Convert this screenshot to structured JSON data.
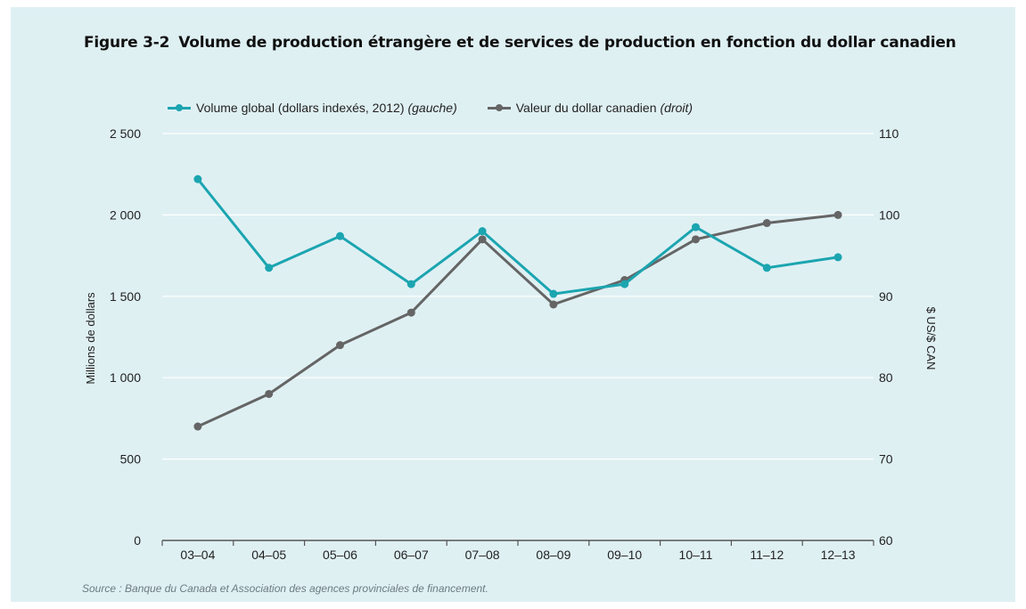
{
  "chart_data": {
    "type": "line",
    "title_number": "Figure 3-2",
    "title": "Volume de production étrangère et de services de production en fonction du dollar canadien",
    "categories": [
      "03–04",
      "04–05",
      "05–06",
      "06–07",
      "07–08",
      "08–09",
      "09–10",
      "10–11",
      "11–12",
      "12–13"
    ],
    "series": [
      {
        "name": "Volume global (dollars indexés, 2012)",
        "name_suffix": "(gauche)",
        "axis": "left",
        "color": "#1ba5b0",
        "values": [
          2220,
          1675,
          1870,
          1575,
          1900,
          1515,
          1575,
          1925,
          1675,
          1740
        ]
      },
      {
        "name": "Valeur du dollar canadien",
        "name_suffix": "(droit)",
        "axis": "right",
        "color": "#656565",
        "values": [
          74,
          78,
          84,
          88,
          97,
          89,
          92,
          97,
          99,
          100
        ]
      }
    ],
    "y_left": {
      "label": "Millions de dollars",
      "ylim": [
        0,
        2500
      ],
      "ticks": [
        0,
        500,
        1000,
        1500,
        2000,
        2500
      ],
      "tick_labels": [
        "0",
        "500",
        "1 000",
        "1 500",
        "2 000",
        "2 500"
      ]
    },
    "y_right": {
      "label": "$ US/$ CAN",
      "ylim": [
        60,
        110
      ],
      "ticks": [
        60,
        70,
        80,
        90,
        100,
        110
      ],
      "tick_labels": [
        "60",
        "70",
        "80",
        "90",
        "100",
        "110"
      ]
    },
    "grid": true,
    "legend_position": "top-left",
    "source": "Source : Banque du Canada et Association des agences provinciales de financement."
  }
}
